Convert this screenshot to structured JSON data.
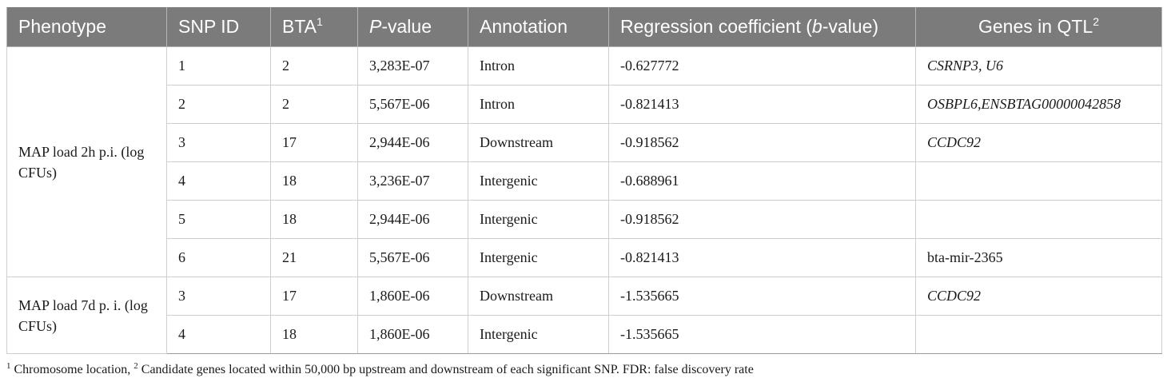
{
  "table": {
    "headers": {
      "phenotype": "Phenotype",
      "snp_id": "SNP ID",
      "bta": "BTA",
      "bta_sup": "1",
      "pvalue_italic": "P",
      "pvalue_rest": "-value",
      "annotation": "Annotation",
      "regression_pre": "Regression coefficient (",
      "regression_italic": "b",
      "regression_post": "-value)",
      "genes": "Genes in QTL",
      "genes_sup": "2"
    },
    "groups": [
      {
        "phenotype": "MAP load 2h p.i. (log CFUs)",
        "rows": [
          {
            "snp": "1",
            "bta": "2",
            "pvalue": "3,283E-07",
            "annotation": "Intron",
            "b": "-0.627772",
            "genes": "CSRNP3, U6",
            "genes_italic": true
          },
          {
            "snp": "2",
            "bta": "2",
            "pvalue": "5,567E-06",
            "annotation": "Intron",
            "b": "-0.821413",
            "genes": "OSBPL6,ENSBTAG00000042858",
            "genes_italic": true
          },
          {
            "snp": "3",
            "bta": "17",
            "pvalue": "2,944E-06",
            "annotation": "Downstream",
            "b": "-0.918562",
            "genes": "CCDC92",
            "genes_italic": true
          },
          {
            "snp": "4",
            "bta": "18",
            "pvalue": "3,236E-07",
            "annotation": "Intergenic",
            "b": "-0.688961",
            "genes": "",
            "genes_italic": true
          },
          {
            "snp": "5",
            "bta": "18",
            "pvalue": "2,944E-06",
            "annotation": "Intergenic",
            "b": "-0.918562",
            "genes": "",
            "genes_italic": true
          },
          {
            "snp": "6",
            "bta": "21",
            "pvalue": "5,567E-06",
            "annotation": "Intergenic",
            "b": "-0.821413",
            "genes": "bta-mir-2365",
            "genes_italic": false
          }
        ]
      },
      {
        "phenotype": "MAP load 7d p. i. (log CFUs)",
        "rows": [
          {
            "snp": "3",
            "bta": "17",
            "pvalue": "1,860E-06",
            "annotation": "Downstream",
            "b": "-1.535665",
            "genes": "CCDC92",
            "genes_italic": true
          },
          {
            "snp": "4",
            "bta": "18",
            "pvalue": "1,860E-06",
            "annotation": "Intergenic",
            "b": "-1.535665",
            "genes": "",
            "genes_italic": true
          }
        ]
      }
    ]
  },
  "footnote": {
    "sup1": "1",
    "text1": " Chromosome location, ",
    "sup2": "2",
    "text2": " Candidate genes located within 50,000 bp upstream and downstream of each significant SNP. FDR: false discovery rate"
  }
}
